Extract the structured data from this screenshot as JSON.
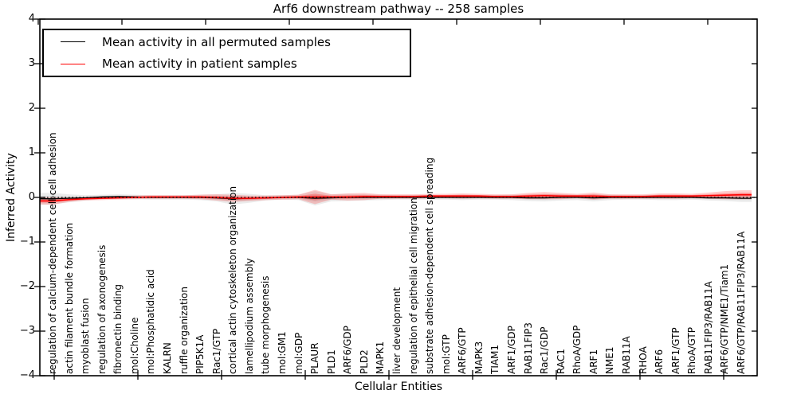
{
  "title": "Arf6 downstream pathway -- 258 samples",
  "legend": {
    "items": [
      {
        "label": "Mean activity in all permuted samples",
        "color": "#000000"
      },
      {
        "label": "Mean activity in patient samples",
        "color": "#ff0000"
      }
    ]
  },
  "chart_data": {
    "type": "line",
    "title": "Arf6 downstream pathway -- 258 samples",
    "xlabel": "Cellular Entities",
    "ylabel": "Inferred Activity",
    "ylim": [
      -4,
      4
    ],
    "ytick_labels": [
      "4",
      "3",
      "2",
      "1",
      "0",
      "−1",
      "−2",
      "−3",
      "−4"
    ],
    "grid": false,
    "legend_position": "upper left",
    "zero_reference_line": true,
    "categories": [
      "regulation of calcium-dependent cell-cell adhesion",
      "actin filament bundle formation",
      "myoblast fusion",
      "regulation of axonogenesis",
      "fibronectin binding",
      "mol:Choline",
      "mol:Phosphatidic acid",
      "KALRN",
      "ruffle organization",
      "PIP5K1A",
      "Rac1/GTP",
      "cortical actin cytoskeleton organization",
      "lamellipodium assembly",
      "tube morphogenesis",
      "mol:GM1",
      "mol:GDP",
      "PLAUR",
      "PLD1",
      "ARF6/GDP",
      "PLD2",
      "MAPK1",
      "liver development",
      "regulation of epithelial cell migration",
      "substrate adhesion-dependent cell spreading",
      "mol:GTP",
      "ARF6/GTP",
      "MAPK3",
      "TIAM1",
      "ARF1/GDP",
      "RAB11FIP3",
      "Rac1/GDP",
      "RAC1",
      "RhoA/GDP",
      "ARF1",
      "NME1",
      "RAB11A",
      "RHOA",
      "ARF6",
      "ARF1/GTP",
      "RhoA/GTP",
      "RAB11FIP3/RAB11A",
      "ARF6/GTP/NME1/Tiam1",
      "ARF6/GTP/RAB11FIP3/RAB11A"
    ],
    "series": [
      {
        "name": "Mean activity in all permuted samples",
        "color": "#000000",
        "band_color": "#999999",
        "values": [
          -0.03,
          -0.02,
          -0.01,
          0.01,
          0.02,
          0.01,
          0,
          0,
          0,
          0,
          -0.01,
          -0.03,
          -0.02,
          -0.01,
          0,
          0,
          -0.02,
          -0.01,
          0,
          0,
          0,
          0,
          0,
          0,
          0,
          0,
          0,
          0,
          0,
          -0.01,
          -0.01,
          0,
          0,
          -0.01,
          0,
          0,
          0,
          0,
          0,
          0,
          -0.01,
          -0.01,
          -0.02
        ],
        "band_halfwidth": [
          0.13,
          0.09,
          0.06,
          0.05,
          0.05,
          0.05,
          0.05,
          0.05,
          0.05,
          0.06,
          0.08,
          0.13,
          0.1,
          0.06,
          0.05,
          0.06,
          0.16,
          0.08,
          0.08,
          0.07,
          0.06,
          0.05,
          0.05,
          0.05,
          0.05,
          0.06,
          0.05,
          0.05,
          0.06,
          0.07,
          0.08,
          0.07,
          0.06,
          0.08,
          0.06,
          0.05,
          0.05,
          0.06,
          0.06,
          0.05,
          0.06,
          0.07,
          0.08
        ]
      },
      {
        "name": "Mean activity in patient samples",
        "color": "#ff0000",
        "band_color": "#ff0000",
        "values": [
          -0.08,
          -0.05,
          -0.03,
          -0.02,
          -0.01,
          0,
          0.01,
          0.01,
          0.01,
          0.01,
          0,
          -0.02,
          -0.02,
          -0.01,
          0,
          0.01,
          0.01,
          0.01,
          0.01,
          0.02,
          0.02,
          0.02,
          0.02,
          0.03,
          0.03,
          0.03,
          0.03,
          0.02,
          0.02,
          0.03,
          0.04,
          0.03,
          0.03,
          0.03,
          0.02,
          0.02,
          0.02,
          0.03,
          0.03,
          0.03,
          0.04,
          0.05,
          0.06
        ],
        "band_halfwidth": [
          0.08,
          0.05,
          0.04,
          0.04,
          0.04,
          0.04,
          0.04,
          0.04,
          0.04,
          0.05,
          0.07,
          0.08,
          0.06,
          0.05,
          0.05,
          0.05,
          0.16,
          0.06,
          0.08,
          0.08,
          0.05,
          0.05,
          0.05,
          0.05,
          0.05,
          0.06,
          0.05,
          0.05,
          0.05,
          0.07,
          0.08,
          0.07,
          0.05,
          0.08,
          0.05,
          0.05,
          0.05,
          0.06,
          0.06,
          0.05,
          0.07,
          0.09,
          0.1
        ]
      }
    ]
  }
}
